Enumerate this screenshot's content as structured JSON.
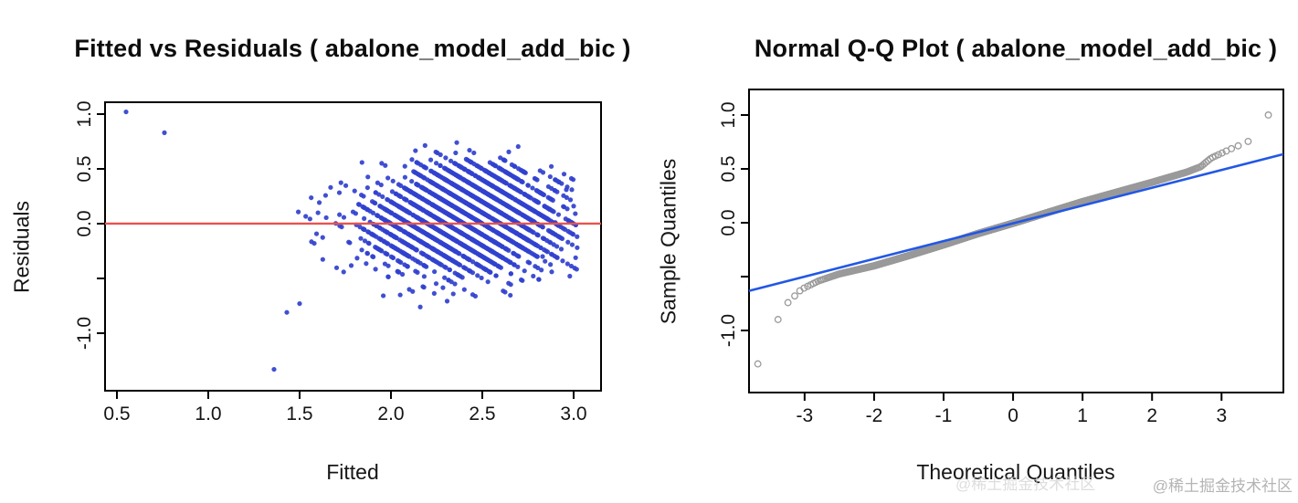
{
  "meta": {
    "background": "#ffffff"
  },
  "watermark": {
    "text": "@稀土掘金技术社区",
    "color": "#b4b4b4"
  },
  "chart_data": [
    {
      "type": "scatter",
      "title": "Fitted vs Residuals ( abalone_model_add_bic )",
      "xlabel": "Fitted",
      "ylabel": "Residuals",
      "xlim": [
        0.435,
        3.15
      ],
      "ylim": [
        -1.525,
        1.108
      ],
      "x_ticks": [
        0.5,
        1.0,
        1.5,
        2.0,
        2.5,
        3.0
      ],
      "x_tick_labels": [
        "0.5",
        "1.0",
        "1.5",
        "2.0",
        "2.5",
        "3.0"
      ],
      "y_ticks": [
        1.0,
        0.5,
        0.0,
        -0.5,
        -1.0
      ],
      "y_tick_labels": [
        "1.0",
        "0.5",
        "0.0",
        "",
        "-1.0"
      ],
      "grid": false,
      "marker": "filled-circle",
      "point_color": "#3142cf",
      "hline": {
        "y": 0,
        "color": "#e8534e"
      },
      "pattern": {
        "description": "Residuals of a discrete response: points fall on parallel diagonal stripes of slope -1 (residual = response level - fitted, level step 0.1), densest near fitted 2.2-2.7, residuals mostly within -0.75..0.65",
        "seed": 7,
        "n_points": 2400,
        "fitted_mean": 2.42,
        "fitted_sd": 0.27,
        "fitted_range": [
          1.43,
          3.02
        ],
        "response_step": 0.1,
        "residual_sd": 0.22,
        "residual_range": [
          -0.9,
          0.85
        ],
        "cluster2": {
          "n_points": 450,
          "fitted_mean": 2.45,
          "fitted_sd": 0.16,
          "res_mean": 0.33,
          "res_sd": 0.13
        }
      },
      "outliers": [
        [
          0.55,
          1.02
        ],
        [
          0.76,
          0.83
        ],
        [
          1.36,
          -1.33
        ],
        [
          1.43,
          -0.81
        ],
        [
          1.5,
          -0.73
        ],
        [
          2.9,
          0.01
        ],
        [
          2.96,
          0.31
        ],
        [
          3.0,
          0.16
        ],
        [
          2.88,
          -0.44
        ],
        [
          2.83,
          -0.3
        ]
      ]
    },
    {
      "type": "scatter",
      "title": "Normal Q-Q Plot ( abalone_model_add_bic )",
      "xlabel": "Theoretical Quantiles",
      "ylabel": "Sample Quantiles",
      "xlim": [
        -3.8,
        3.89
      ],
      "ylim": [
        -1.576,
        1.237
      ],
      "x_ticks": [
        -3,
        -2,
        -1,
        0,
        1,
        2,
        3
      ],
      "x_tick_labels": [
        "-3",
        "-2",
        "-1",
        "0",
        "1",
        "2",
        "3"
      ],
      "y_ticks": [
        1.0,
        0.5,
        0.0,
        -0.5,
        -1.0
      ],
      "y_tick_labels": [
        "1.0",
        "0.5",
        "0.0",
        "",
        "-1.0"
      ],
      "grid": false,
      "marker": "open-circle",
      "point_color": "#9a9a9a",
      "n_points": 4177,
      "line": {
        "type": "qqline",
        "slope": 0.165,
        "intercept": -0.005,
        "color": "#2257e6"
      },
      "curve_anchors": [
        [
          -3.67,
          -1.31
        ],
        [
          -3.3,
          -0.78
        ],
        [
          -3.05,
          -0.62
        ],
        [
          -2.8,
          -0.54
        ],
        [
          -2.5,
          -0.475
        ],
        [
          -2.0,
          -0.4
        ],
        [
          -1.5,
          -0.305
        ],
        [
          -1.0,
          -0.205
        ],
        [
          -0.5,
          -0.1
        ],
        [
          0.0,
          -0.005
        ],
        [
          0.5,
          0.095
        ],
        [
          1.0,
          0.195
        ],
        [
          1.5,
          0.285
        ],
        [
          2.0,
          0.375
        ],
        [
          2.5,
          0.47
        ],
        [
          2.7,
          0.52
        ],
        [
          2.85,
          0.6
        ],
        [
          3.0,
          0.645
        ],
        [
          3.15,
          0.69
        ],
        [
          3.3,
          0.73
        ],
        [
          3.45,
          0.775
        ],
        [
          3.67,
          1.0
        ]
      ]
    }
  ]
}
